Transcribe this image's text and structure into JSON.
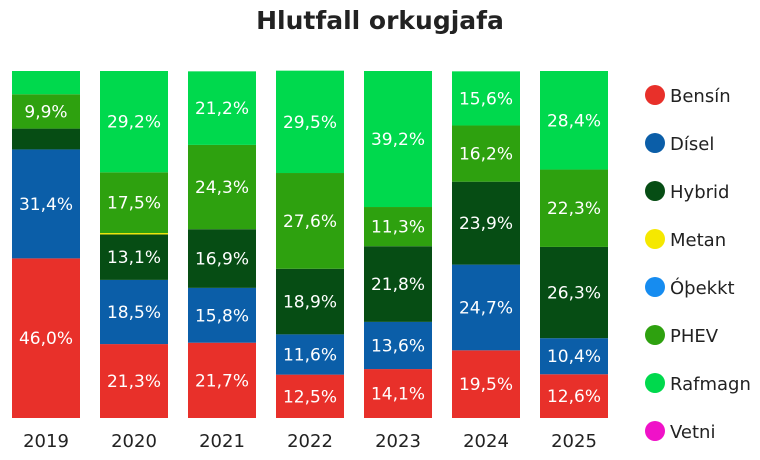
{
  "chart_data": {
    "type": "bar",
    "stacked": true,
    "normalized": true,
    "title": "Hlutfall orkugjafa",
    "xlabel": "",
    "ylabel": "",
    "ylim": [
      0,
      100
    ],
    "categories": [
      "2019",
      "2020",
      "2021",
      "2022",
      "2023",
      "2024",
      "2025"
    ],
    "legend_position": "right",
    "grid": false,
    "series": [
      {
        "name": "Bensín",
        "color": "#e8302a",
        "values": [
          46.0,
          21.3,
          21.7,
          12.5,
          14.1,
          19.5,
          12.6
        ],
        "labels": [
          "46,0%",
          "21,3%",
          "21,7%",
          "12,5%",
          "14,1%",
          "19,5%",
          "12,6%"
        ]
      },
      {
        "name": "Dísel",
        "color": "#0b5ea8",
        "values": [
          31.4,
          18.5,
          15.8,
          11.6,
          13.6,
          24.7,
          10.4
        ],
        "labels": [
          "31,4%",
          "18,5%",
          "15,8%",
          "11,6%",
          "13,6%",
          "24,7%",
          "10,4%"
        ]
      },
      {
        "name": "Hybrid",
        "color": "#064d14",
        "values": [
          6.0,
          13.1,
          16.9,
          18.9,
          21.8,
          23.9,
          26.3
        ],
        "labels": [
          "",
          "13,1%",
          "16,9%",
          "18,9%",
          "21,8%",
          "23,9%",
          "26,3%"
        ]
      },
      {
        "name": "Metan",
        "color": "#f5e800",
        "values": [
          0,
          0.4,
          0,
          0,
          0,
          0,
          0
        ],
        "labels": [
          "",
          "",
          "",
          "",
          "",
          "",
          ""
        ]
      },
      {
        "name": "Óþekkt",
        "color": "#168cf0",
        "values": [
          0,
          0,
          0,
          0,
          0,
          0,
          0
        ],
        "labels": [
          "",
          "",
          "",
          "",
          "",
          "",
          ""
        ]
      },
      {
        "name": "PHEV",
        "color": "#2ea10f",
        "values": [
          9.9,
          17.5,
          24.3,
          27.6,
          11.3,
          16.2,
          22.3
        ],
        "labels": [
          "9,9%",
          "17,5%",
          "24,3%",
          "27,6%",
          "11,3%",
          "16,2%",
          "22,3%"
        ]
      },
      {
        "name": "Rafmagn",
        "color": "#00d94d",
        "values": [
          6.7,
          29.2,
          21.2,
          29.5,
          39.2,
          15.6,
          28.4
        ],
        "labels": [
          "",
          "29,2%",
          "21,2%",
          "29,5%",
          "39,2%",
          "15,6%",
          "28,4%"
        ]
      },
      {
        "name": "Vetni",
        "color": "#f012c8",
        "values": [
          0,
          0,
          0,
          0,
          0,
          0,
          0
        ],
        "labels": [
          "",
          "",
          "",
          "",
          "",
          "",
          ""
        ]
      }
    ]
  }
}
